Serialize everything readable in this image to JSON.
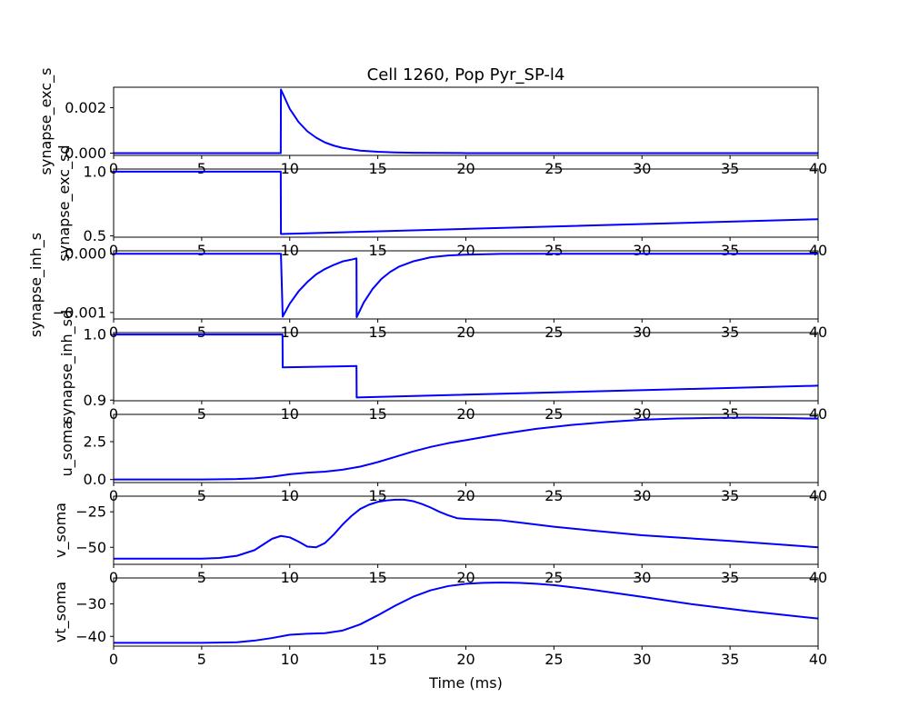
{
  "figure": {
    "title": "Cell 1260, Pop Pyr_SP-l4",
    "xlabel": "Time (ms)"
  },
  "chart_data": [
    {
      "type": "line",
      "ylabel": "synapse_exc_s",
      "xlim": [
        0,
        40
      ],
      "ylim": [
        -0.0001,
        0.0029
      ],
      "x_ticks": [
        "0",
        "5",
        "10",
        "15",
        "20",
        "25",
        "30",
        "35",
        "40"
      ],
      "y_ticks": [
        {
          "v": 0.0,
          "label": "0.000"
        },
        {
          "v": 0.002,
          "label": "0.002"
        }
      ],
      "series": [
        {
          "color": "#0000ff",
          "x": [
            0,
            9.49,
            9.5,
            10,
            10.5,
            11,
            11.5,
            12,
            12.5,
            13,
            14,
            15,
            16,
            17,
            20,
            25,
            30,
            35,
            40
          ],
          "y": [
            0,
            0,
            0.0028,
            0.00195,
            0.00137,
            0.00096,
            0.00068,
            0.00047,
            0.00033,
            0.00023,
            0.00011,
            6e-05,
            3e-05,
            1.5e-05,
            2e-06,
            0,
            0,
            0,
            0
          ]
        }
      ]
    },
    {
      "type": "line",
      "ylabel": "synapse_exc_sd",
      "xlim": [
        0,
        40
      ],
      "ylim": [
        0.49,
        1.02
      ],
      "x_ticks": [
        "0",
        "5",
        "10",
        "15",
        "20",
        "25",
        "30",
        "35",
        "40"
      ],
      "y_ticks": [
        {
          "v": 0.5,
          "label": "0.5"
        },
        {
          "v": 1.0,
          "label": "1.0"
        }
      ],
      "series": [
        {
          "color": "#0000ff",
          "x": [
            0,
            9.49,
            9.5,
            40
          ],
          "y": [
            1.0,
            1.0,
            0.515,
            0.63
          ]
        }
      ]
    },
    {
      "type": "line",
      "ylabel": "synapse_inh_s",
      "xlim": [
        0,
        40
      ],
      "ylim": [
        -0.00111,
        5e-05
      ],
      "x_ticks": [
        "0",
        "5",
        "10",
        "15",
        "20",
        "25",
        "30",
        "35",
        "40"
      ],
      "y_ticks": [
        {
          "v": 0.0,
          "label": "0.000"
        },
        {
          "v": -0.001,
          "label": "−0.001"
        }
      ],
      "series": [
        {
          "color": "#0000ff",
          "x": [
            0,
            9.5,
            9.6,
            10,
            10.5,
            11,
            11.5,
            12,
            12.5,
            13,
            13.5,
            13.79,
            13.8,
            14.2,
            14.7,
            15.2,
            15.7,
            16.2,
            17,
            18,
            19,
            20,
            22,
            25,
            30,
            40
          ],
          "y": [
            0,
            0,
            -0.00107,
            -0.00085,
            -0.00064,
            -0.00048,
            -0.00035,
            -0.00026,
            -0.00019,
            -0.00013,
            -0.0001,
            -8e-05,
            -0.00108,
            -0.00083,
            -0.0006,
            -0.00043,
            -0.00031,
            -0.00022,
            -0.00013,
            -6e-05,
            -3e-05,
            -1.5e-05,
            -3e-06,
            0,
            0,
            0
          ]
        }
      ]
    },
    {
      "type": "line",
      "ylabel": "synapse_inh_sd",
      "xlim": [
        0,
        40
      ],
      "ylim": [
        0.899,
        1.003
      ],
      "x_ticks": [
        "0",
        "5",
        "10",
        "15",
        "20",
        "25",
        "30",
        "35",
        "40"
      ],
      "y_ticks": [
        {
          "v": 0.9,
          "label": "0.9"
        },
        {
          "v": 1.0,
          "label": "1.0"
        }
      ],
      "series": [
        {
          "color": "#0000ff",
          "x": [
            0,
            9.59,
            9.6,
            13.79,
            13.8,
            40
          ],
          "y": [
            1.0,
            1.0,
            0.95,
            0.952,
            0.904,
            0.922
          ]
        }
      ]
    },
    {
      "type": "line",
      "ylabel": "u_soma",
      "xlim": [
        0,
        40
      ],
      "ylim": [
        -0.2,
        4.3
      ],
      "x_ticks": [
        "0",
        "5",
        "10",
        "15",
        "20",
        "25",
        "30",
        "35",
        "40"
      ],
      "y_ticks": [
        {
          "v": 0.0,
          "label": "0.0"
        },
        {
          "v": 2.5,
          "label": "2.5"
        }
      ],
      "series": [
        {
          "color": "#0000ff",
          "x": [
            0,
            5,
            7,
            8,
            9,
            10,
            11,
            12,
            13,
            14,
            15,
            16,
            17,
            18,
            19,
            20,
            22,
            24,
            26,
            28,
            30,
            32,
            34,
            36,
            38,
            40
          ],
          "y": [
            0,
            0,
            0.03,
            0.08,
            0.18,
            0.35,
            0.45,
            0.52,
            0.65,
            0.85,
            1.15,
            1.5,
            1.85,
            2.15,
            2.4,
            2.6,
            3.0,
            3.35,
            3.6,
            3.8,
            3.95,
            4.03,
            4.07,
            4.08,
            4.06,
            4.02
          ]
        }
      ]
    },
    {
      "type": "line",
      "ylabel": "v_soma",
      "xlim": [
        0,
        40
      ],
      "ylim": [
        -62,
        -14
      ],
      "x_ticks": [
        "0",
        "5",
        "10",
        "15",
        "20",
        "25",
        "30",
        "35",
        "40"
      ],
      "y_ticks": [
        {
          "v": -25,
          "label": "−25"
        },
        {
          "v": -50,
          "label": "−50"
        }
      ],
      "series": [
        {
          "color": "#0000ff",
          "x": [
            0,
            5,
            6,
            7,
            8,
            8.5,
            9,
            9.5,
            10,
            10.5,
            11,
            11.5,
            12,
            12.5,
            13,
            13.5,
            14,
            14.5,
            15,
            15.5,
            16,
            16.5,
            17,
            17.5,
            18,
            18.5,
            19,
            19.5,
            20,
            21,
            22,
            23,
            24,
            25,
            27,
            30,
            35,
            40
          ],
          "y": [
            -58,
            -58,
            -57.5,
            -56,
            -52,
            -48,
            -44,
            -42,
            -43,
            -46,
            -49.5,
            -50,
            -47,
            -41,
            -34,
            -28,
            -23,
            -20,
            -18,
            -17,
            -16.5,
            -16.5,
            -17.5,
            -19.5,
            -22,
            -25,
            -27.5,
            -29.5,
            -30,
            -30.5,
            -31,
            -32.5,
            -34,
            -35.5,
            -38,
            -41.5,
            -45.5,
            -50
          ]
        }
      ]
    },
    {
      "type": "line",
      "ylabel": "vt_soma",
      "xlim": [
        0,
        40
      ],
      "ylim": [
        -43,
        -22
      ],
      "x_ticks": [
        "0",
        "5",
        "10",
        "15",
        "20",
        "25",
        "30",
        "35",
        "40"
      ],
      "y_ticks": [
        {
          "v": -30,
          "label": "−30"
        },
        {
          "v": -40,
          "label": "−40"
        }
      ],
      "series": [
        {
          "color": "#0000ff",
          "x": [
            0,
            5,
            7,
            8,
            9,
            10,
            11,
            12,
            13,
            14,
            15,
            16,
            17,
            18,
            19,
            20,
            21,
            22,
            23,
            24,
            25,
            27,
            30,
            33,
            36,
            40
          ],
          "y": [
            -42,
            -42,
            -41.8,
            -41.3,
            -40.5,
            -39.5,
            -39.2,
            -39,
            -38.2,
            -36.3,
            -33.5,
            -30.5,
            -27.8,
            -25.8,
            -24.5,
            -23.8,
            -23.5,
            -23.4,
            -23.5,
            -23.8,
            -24.2,
            -25.5,
            -27.8,
            -30.2,
            -32.2,
            -34.5
          ]
        }
      ]
    }
  ]
}
